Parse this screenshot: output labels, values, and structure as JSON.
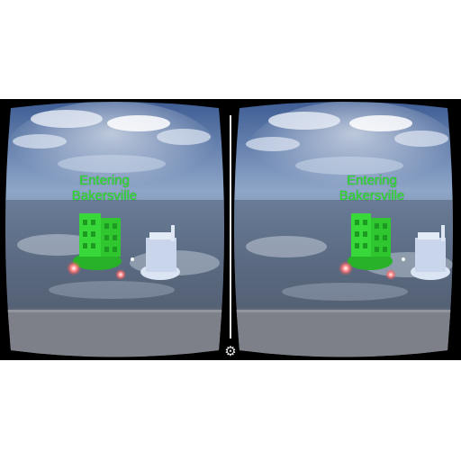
{
  "hud": {
    "line1": "Entering",
    "line2": "Bakersville"
  },
  "controls": {
    "settings_icon": "gear-icon"
  },
  "colors": {
    "hud_text": "#33dd33",
    "background": "#000000"
  }
}
